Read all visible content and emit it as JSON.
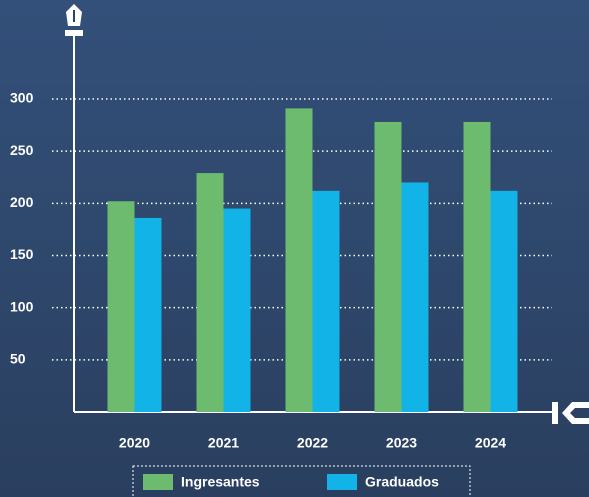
{
  "chart_data": {
    "type": "bar",
    "categories": [
      "2020",
      "2021",
      "2022",
      "2023",
      "2024"
    ],
    "series": [
      {
        "name": "Ingresantes",
        "color": "#6cbb6e",
        "values": [
          202,
          229,
          291,
          278,
          278
        ]
      },
      {
        "name": "Graduados",
        "color": "#12b3e6",
        "values": [
          186,
          195,
          212,
          220,
          212
        ]
      }
    ],
    "ylim": [
      0,
      300
    ],
    "yticks": [
      50,
      100,
      150,
      200,
      250,
      300
    ],
    "grid": true
  }
}
